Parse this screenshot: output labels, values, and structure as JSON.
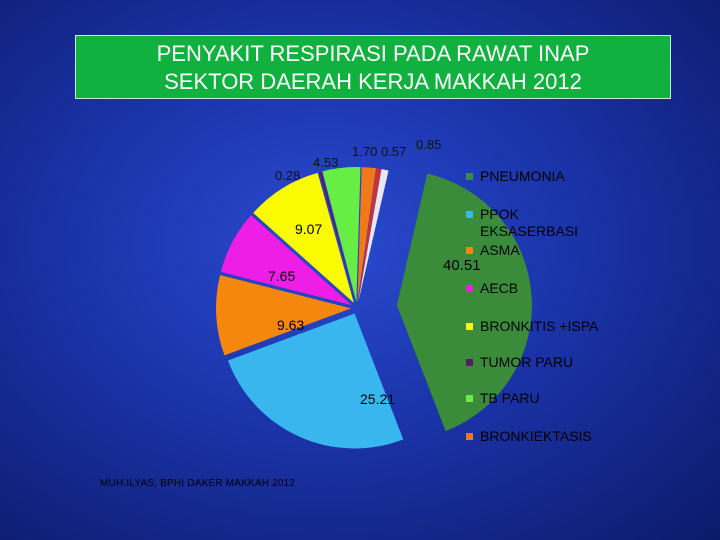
{
  "title": {
    "line1": "PENYAKIT RESPIRASI PADA RAWAT INAP",
    "line2": "SEKTOR DAERAH KERJA MAKKAH 2012"
  },
  "footer": "MUH.ILYAS, BPHI DAKER MAKKAH 2012",
  "chart_data": {
    "type": "pie",
    "title": "PENYAKIT RESPIRASI PADA RAWAT INAP SEKTOR DAERAH KERJA MAKKAH 2012",
    "legend_position": "right",
    "slices": [
      {
        "label": "PNEUMONIA",
        "value": 40.51,
        "color": "#3a8c3a",
        "value_label": "40.51"
      },
      {
        "label": "PPOK EKSASERBASI",
        "value": 25.21,
        "color": "#39b6ee",
        "value_label": "25.21"
      },
      {
        "label": "ASMA",
        "value": 9.63,
        "color": "#f5870f",
        "value_label": "9.63"
      },
      {
        "label": "AECB",
        "value": 7.65,
        "color": "#ee1ee6",
        "value_label": "7.65"
      },
      {
        "label": "BRONKITIS +ISPA",
        "value": 9.07,
        "color": "#fafa00",
        "value_label": "9.07"
      },
      {
        "label": "TUMOR PARU",
        "value": 0.28,
        "color": "#5a1a6a",
        "value_label": "0.28"
      },
      {
        "label": "TB PARU",
        "value": 4.53,
        "color": "#66ee44",
        "value_label": "4.53"
      },
      {
        "label": "BRONKIEKTASIS",
        "value": 1.7,
        "color": "#f07a1a",
        "value_label": "1.70"
      },
      {
        "label": "",
        "value": 0.57,
        "color": "#d03030",
        "value_label": "0.57"
      },
      {
        "label": "",
        "value": 0.85,
        "color": "#e8e8f4",
        "value_label": "0.85"
      }
    ],
    "legend": [
      {
        "label": "PNEUMONIA",
        "color": "#3a8c3a"
      },
      {
        "label": "PPOK EKSASERBASI",
        "color": "#39b6ee"
      },
      {
        "label": "ASMA",
        "color": "#f5870f"
      },
      {
        "label": "AECB",
        "color": "#ee1ee6"
      },
      {
        "label": "BRONKITIS +ISPA",
        "color": "#fafa00"
      },
      {
        "label": "TUMOR PARU",
        "color": "#5a1a6a"
      },
      {
        "label": "TB PARU",
        "color": "#66ee44"
      },
      {
        "label": "BRONKIEKTASIS",
        "color": "#f07a1a"
      }
    ]
  }
}
